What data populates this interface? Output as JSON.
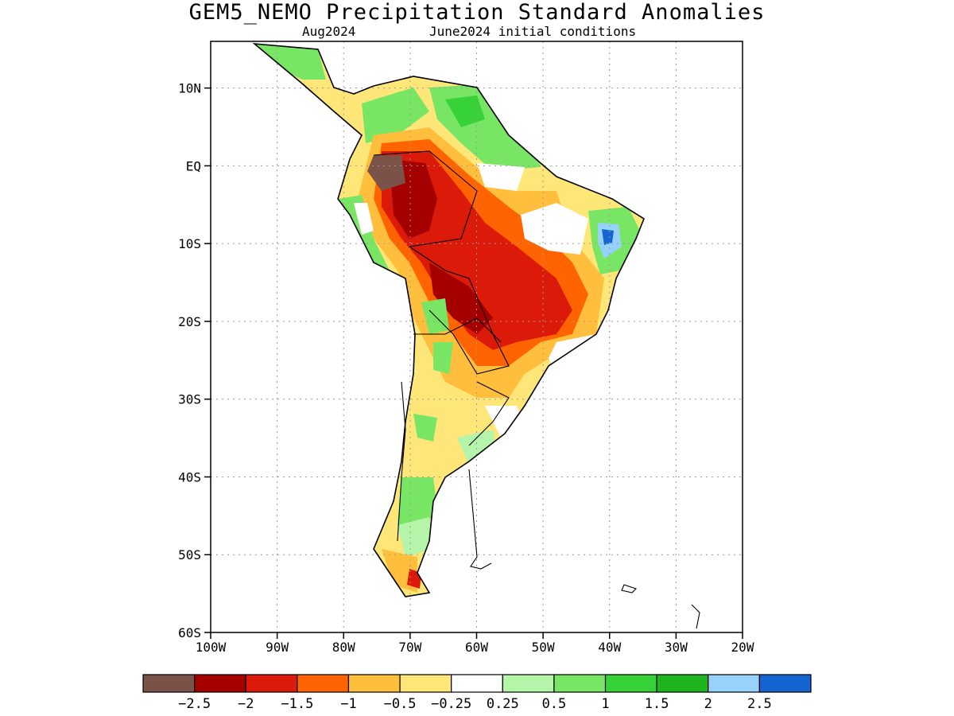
{
  "title": "GEM5_NEMO Precipitation Standard Anomalies",
  "subtitle_left": "Aug2024",
  "subtitle_right": "June2024 initial conditions",
  "map": {
    "lat_ticks": [
      "10N",
      "EQ",
      "10S",
      "20S",
      "30S",
      "40S",
      "50S",
      "60S"
    ],
    "lon_ticks": [
      "100W",
      "90W",
      "80W",
      "70W",
      "60W",
      "50W",
      "40W",
      "30W",
      "20W"
    ],
    "lon_range": [
      -100,
      -20
    ],
    "lat_range": [
      -60,
      16
    ],
    "grid": true
  },
  "colorbar": {
    "colors": [
      "#7a5247",
      "#a50000",
      "#dc1a0a",
      "#ff6400",
      "#ffbe3c",
      "#ffe678",
      "#ffffff",
      "#b4f5aa",
      "#78e664",
      "#37d237",
      "#1eb41e",
      "#96d2fa",
      "#1464d2"
    ],
    "labels": [
      "−2.5",
      "−2",
      "−1.5",
      "−1",
      "−0.5",
      "−0.25",
      "0.25",
      "0.5",
      "1",
      "1.5",
      "2",
      "2.5"
    ]
  }
}
